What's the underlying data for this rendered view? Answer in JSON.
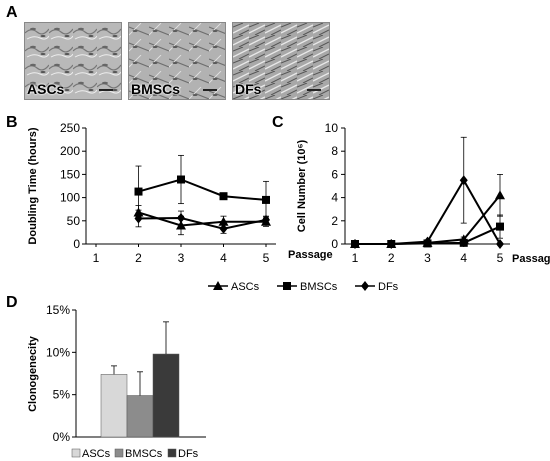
{
  "panels": {
    "a": "A",
    "b": "B",
    "c": "C",
    "d": "D"
  },
  "micrographs": [
    {
      "label": "ASCs"
    },
    {
      "label": "BMSCs"
    },
    {
      "label": "DFs"
    }
  ],
  "chart_data": [
    {
      "id": "B",
      "type": "line",
      "ylabel": "Doubling Time (hours)",
      "xlabel": "Passage",
      "ylim": [
        0,
        250
      ],
      "yticks": [
        0,
        50,
        100,
        150,
        200,
        250
      ],
      "x": [
        1,
        2,
        3,
        4,
        5
      ],
      "series": [
        {
          "name": "ASCs",
          "marker": "triangle",
          "x": [
            2,
            3,
            4,
            5
          ],
          "values": [
            68,
            40,
            48,
            48
          ],
          "err": [
            15,
            20,
            12,
            10
          ]
        },
        {
          "name": "BMSCs",
          "marker": "square",
          "x": [
            2,
            3,
            4,
            5
          ],
          "values": [
            113,
            139,
            103,
            95
          ],
          "err": [
            55,
            52,
            5,
            40
          ]
        },
        {
          "name": "DFs",
          "marker": "diamond",
          "x": [
            2,
            3,
            4,
            5
          ],
          "values": [
            55,
            56,
            33,
            52
          ],
          "err": [
            18,
            15,
            10,
            8
          ]
        }
      ],
      "grid": false
    },
    {
      "id": "C",
      "type": "line",
      "ylabel": "Cell Number (10⁶)",
      "xlabel": "Passage",
      "ylim": [
        0,
        10
      ],
      "yticks": [
        0,
        2,
        4,
        6,
        8,
        10
      ],
      "x": [
        1,
        2,
        3,
        4,
        5
      ],
      "series": [
        {
          "name": "ASCs",
          "marker": "triangle",
          "x": [
            1,
            2,
            3,
            4,
            5
          ],
          "values": [
            0,
            0,
            0.1,
            0.4,
            4.2
          ],
          "err": [
            0,
            0,
            0,
            0.2,
            1.8
          ]
        },
        {
          "name": "BMSCs",
          "marker": "square",
          "x": [
            1,
            2,
            3,
            4,
            5
          ],
          "values": [
            0,
            0,
            0.05,
            0.1,
            1.5
          ],
          "err": [
            0,
            0,
            0,
            0,
            1.0
          ]
        },
        {
          "name": "DFs",
          "marker": "diamond",
          "x": [
            1,
            2,
            3,
            4,
            5
          ],
          "values": [
            0,
            0,
            0.2,
            5.5,
            0
          ],
          "err": [
            0,
            0,
            0,
            3.7,
            0
          ]
        }
      ],
      "grid": false
    },
    {
      "id": "D",
      "type": "bar",
      "ylabel": "Clonogenecity",
      "categories": [
        "ASCs",
        "BMSCs",
        "DFs"
      ],
      "values": [
        7.4,
        4.9,
        9.8
      ],
      "err": [
        1.0,
        2.8,
        3.8
      ],
      "colors": [
        "#d8d8d8",
        "#8c8c8c",
        "#3a3a3a"
      ],
      "ylim": [
        0,
        15
      ],
      "yticks": [
        "0%",
        "5%",
        "10%",
        "15%"
      ],
      "legend": "bottom",
      "grid": false
    }
  ],
  "legend_bc": [
    "ASCs",
    "BMSCs",
    "DFs"
  ]
}
